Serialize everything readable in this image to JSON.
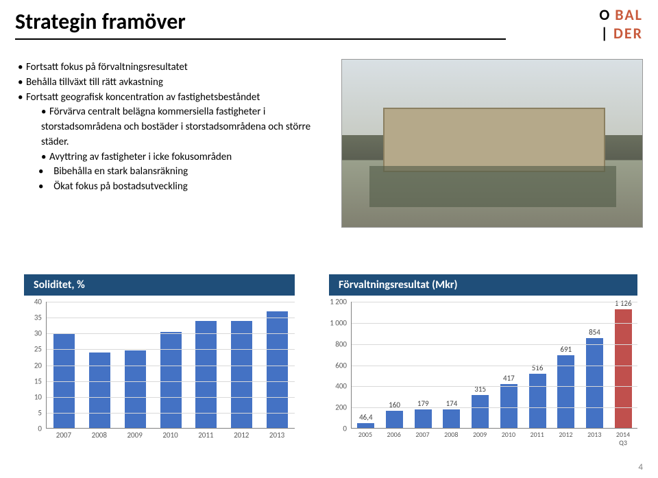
{
  "title": "Strategin framöver",
  "logo": {
    "line1a": "O",
    "line1b": "BAL",
    "line2a": "|",
    "line2b": "DER"
  },
  "bullets": {
    "b1": "Fortsatt fokus på förvaltningsresultatet",
    "b2": "Behålla tillväxt till rätt avkastning",
    "b3": "Fortsatt geografisk koncentration av fastighetsbeståndet",
    "b3a": "Förvärva centralt belägna kommersiella fastigheter i storstadsområdena och bostäder i storstadsområdena och större städer.",
    "b3b": "Avyttring av fastigheter i icke fokusområden",
    "b4": "Bibehålla en stark balansräkning",
    "b5": "Ökat fokus på bostadsutveckling"
  },
  "chart1": {
    "title": "Soliditet, %",
    "ymax": 40,
    "ystep": 5,
    "bar_color": "#4472c4",
    "categories": [
      "2007",
      "2008",
      "2009",
      "2010",
      "2011",
      "2012",
      "2013"
    ],
    "values": [
      30,
      24,
      24.5,
      30.5,
      34,
      34,
      37
    ]
  },
  "chart2": {
    "title": "Förvaltningsresultat (Mkr)",
    "ymax": 1200,
    "ystep": 200,
    "bar_color": "#4472c4",
    "last_bar_color": "#c0504d",
    "categories": [
      "2005",
      "2006",
      "2007",
      "2008",
      "2009",
      "2010",
      "2011",
      "2012",
      "2013",
      "2014 Q3"
    ],
    "values": [
      46.4,
      160,
      179,
      174,
      315,
      417,
      516,
      691,
      854,
      1126
    ],
    "labels": [
      "46,4",
      "160",
      "179",
      "174",
      "315",
      "417",
      "516",
      "691",
      "854",
      "1 126"
    ]
  },
  "page_number": "4"
}
